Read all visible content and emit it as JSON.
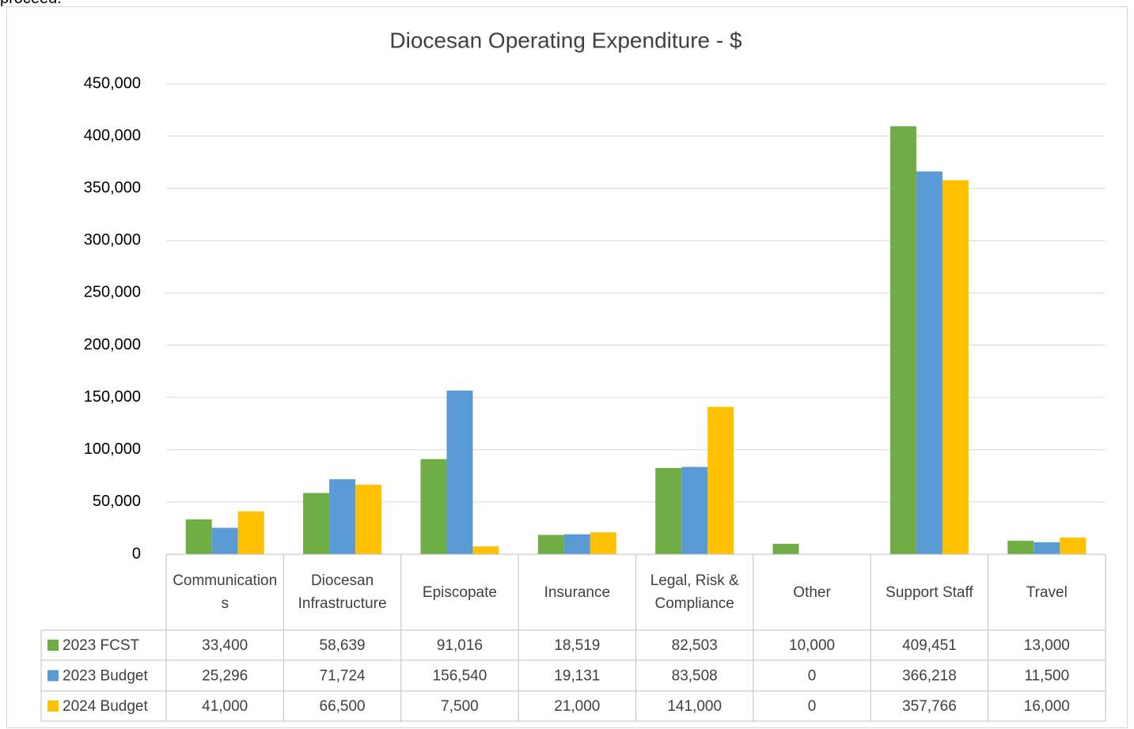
{
  "page_text": "proceed.",
  "chart_data": {
    "type": "bar",
    "title": "Diocesan Operating Expenditure - $",
    "categories": [
      "Communications",
      "Diocesan Infrastructure",
      "Episcopate",
      "Insurance",
      "Legal, Risk & Compliance",
      "Other",
      "Support Staff",
      "Travel"
    ],
    "series": [
      {
        "name": "2023 FCST",
        "color": "#70ad47",
        "values": [
          33400,
          58639,
          91016,
          18519,
          82503,
          10000,
          409451,
          13000
        ],
        "value_labels": [
          "33,400",
          "58,639",
          "91,016",
          "18,519",
          "82,503",
          "10,000",
          "409,451",
          "13,000"
        ]
      },
      {
        "name": "2023 Budget",
        "color": "#5b9bd5",
        "values": [
          25296,
          71724,
          156540,
          19131,
          83508,
          0,
          366218,
          11500
        ],
        "value_labels": [
          "25,296",
          "71,724",
          "156,540",
          "19,131",
          "83,508",
          "0",
          "366,218",
          "11,500"
        ]
      },
      {
        "name": "2024 Budget",
        "color": "#ffc000",
        "values": [
          41000,
          66500,
          7500,
          21000,
          141000,
          0,
          357766,
          16000
        ],
        "value_labels": [
          "41,000",
          "66,500",
          "7,500",
          "21,000",
          "141,000",
          "0",
          "357,766",
          "16,000"
        ]
      }
    ],
    "ylim": [
      0,
      450000
    ],
    "yticks": [
      0,
      {
        "value": 50000,
        "label": "50,000"
      },
      {
        "value": 100000,
        "label": "100,000"
      },
      {
        "value": 150000,
        "label": "150,000"
      },
      {
        "value": 200000,
        "label": "200,000"
      },
      {
        "value": 250000,
        "label": "250,000"
      },
      {
        "value": 300000,
        "label": "300,000"
      },
      {
        "value": 350000,
        "label": "350,000"
      },
      {
        "value": 400000,
        "label": "400,000"
      },
      {
        "value": 450000,
        "label": "450,000"
      }
    ],
    "grid": true,
    "data_table": true
  }
}
